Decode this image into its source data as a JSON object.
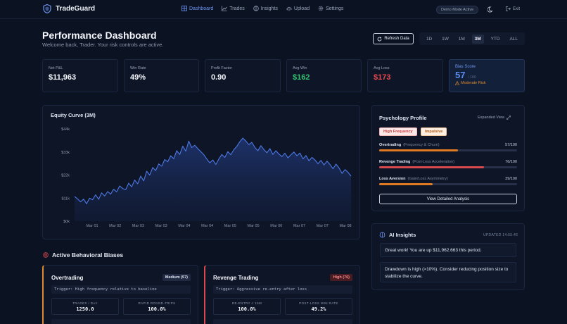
{
  "app": {
    "name": "TradeGuard"
  },
  "nav": {
    "items": [
      {
        "label": "Dashboard",
        "icon": "grid-icon",
        "active": true
      },
      {
        "label": "Trades",
        "icon": "chart-icon",
        "active": false
      },
      {
        "label": "Insights",
        "icon": "brain-icon",
        "active": false
      },
      {
        "label": "Upload",
        "icon": "cloud-upload-icon",
        "active": false
      },
      {
        "label": "Settings",
        "icon": "gear-icon",
        "active": false
      }
    ],
    "demo_badge": "Demo Mode Active",
    "exit_label": "Exit"
  },
  "header": {
    "title": "Performance Dashboard",
    "subtitle": "Welcome back, Trader. Your risk controls are active.",
    "refresh_label": "Refresh Data",
    "ranges": [
      "1D",
      "1W",
      "1M",
      "3M",
      "YTD",
      "ALL"
    ],
    "active_range": "3M"
  },
  "kpis": {
    "net_pnl": {
      "label": "Net P&L",
      "value": "$11,963"
    },
    "win_rate": {
      "label": "Win Rate",
      "value": "49%"
    },
    "profit_factor": {
      "label": "Profit Factor",
      "value": "0.90"
    },
    "avg_win": {
      "label": "Avg Win",
      "value": "$162"
    },
    "avg_loss": {
      "label": "Avg Loss",
      "value": "$173"
    },
    "bias_score": {
      "label": "Bias Score",
      "value": "57",
      "max": "/ 100",
      "risk": "Moderate Risk"
    }
  },
  "equity": {
    "title": "Equity Curve (3M)"
  },
  "chart_data": {
    "type": "area",
    "title": "Equity Curve (3M)",
    "xlabel": "",
    "ylabel": "",
    "y_ticks": [
      "$44k",
      "$33k",
      "$22k",
      "$11k",
      "$0k"
    ],
    "x_ticks": [
      "Mar 01",
      "Mar 02",
      "Mar 03",
      "Mar 03",
      "Mar 04",
      "Mar 04",
      "Mar 05",
      "Mar 05",
      "Mar 06",
      "Mar 07",
      "Mar 07",
      "Mar 08"
    ],
    "ylim": [
      0,
      44000
    ],
    "grid": false,
    "color": "#4d78e6",
    "series": [
      {
        "values": [
          11800,
          10600,
          9200,
          10500,
          8300,
          11000,
          10200,
          12600,
          10400,
          13500,
          12000,
          14100,
          12900,
          15200,
          14000,
          16800,
          15600,
          15000,
          18100,
          16400,
          19600,
          17800,
          21500,
          19200,
          23800,
          22000,
          25600,
          24100,
          27300,
          26200,
          29400,
          28300,
          31200,
          29800,
          33600,
          31800,
          35800,
          33400,
          38200,
          35100,
          36200,
          34600,
          33200,
          31700,
          29600,
          27800,
          29200,
          27000,
          29600,
          31800,
          30400,
          33200,
          31700,
          34100,
          35700,
          37900,
          39600,
          38200,
          36500,
          37600,
          35200,
          33600,
          36000,
          34200,
          32600,
          34600,
          31800,
          33600,
          32000,
          30800,
          32400,
          30200,
          31700,
          33000,
          31200,
          32500,
          29700,
          31300,
          28800,
          30400,
          29200,
          27400,
          29000,
          26800,
          28600,
          27000,
          25000,
          27200,
          25400,
          22800,
          24600,
          23300,
          21500
        ]
      }
    ]
  },
  "psychology": {
    "title": "Psychology Profile",
    "expand_label": "Expanded View",
    "tags": [
      "High Frequency",
      "Impulsive"
    ],
    "metrics": [
      {
        "name": "Overtrading",
        "sub": "(Frequency & Churn)",
        "value": "57/100",
        "score": 57,
        "color": "#e07a22"
      },
      {
        "name": "Revenge Trading",
        "sub": "(Post-Loss Acceleration)",
        "value": "76/100",
        "score": 76,
        "color": "#d9484d"
      },
      {
        "name": "Loss Aversion",
        "sub": "(Gain/Loss Asymmetry)",
        "value": "39/100",
        "score": 39,
        "color": "#e07a22"
      }
    ],
    "detail_label": "View Detailed Analysis"
  },
  "ai": {
    "title": "AI Insights",
    "updated": "UPDATED 14:55:46",
    "messages": [
      "Great work! You are up $11,962.663 this period.",
      "Drawdown is high (>10%). Consider reducing position size to stabilize the curve."
    ]
  },
  "biases": {
    "title": "Active Behavioral Biases",
    "cards": [
      {
        "name": "Overtrading",
        "level": "Medium (57)",
        "trigger": "Trigger: High frequency relative to baseline",
        "stats": [
          {
            "label": "TRADES / DAY",
            "value": "1250.0"
          },
          {
            "label": "RAPID ROUND-TRIPS",
            "value": "100.0%"
          }
        ]
      },
      {
        "name": "Revenge Trading",
        "level": "High (76)",
        "trigger": "Trigger: Aggressive re-entry after loss",
        "stats": [
          {
            "label": "RE-ENTRY < 15M",
            "value": "100.0%"
          },
          {
            "label": "POST-LOSS WIN RATE",
            "value": "49.2%"
          }
        ]
      }
    ]
  }
}
